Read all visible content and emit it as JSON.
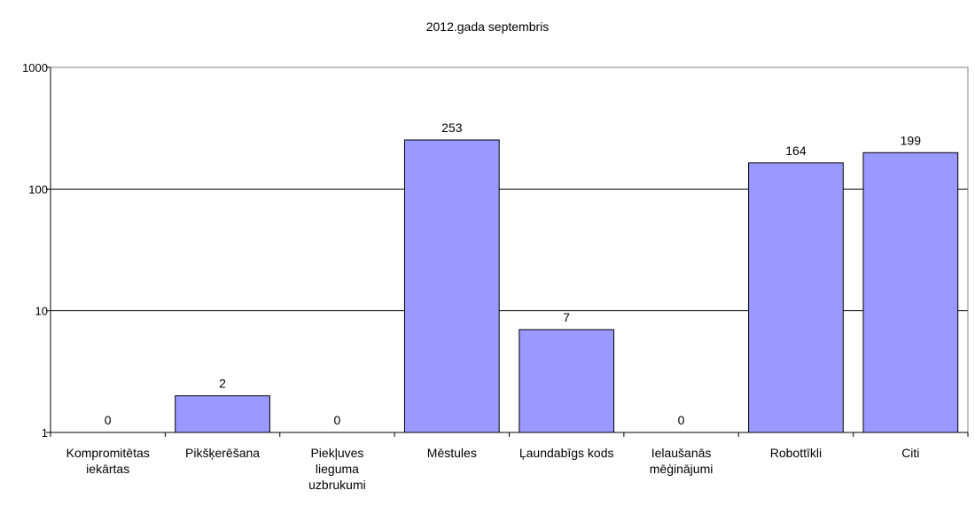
{
  "chart_data": {
    "type": "bar",
    "title": "2012.gada septembris",
    "xlabel": "",
    "ylabel": "",
    "yscale": "log",
    "ylim": [
      1,
      1000
    ],
    "yticks": [
      1,
      10,
      100,
      1000
    ],
    "ytick_labels": [
      "1",
      "10",
      "100",
      "1000"
    ],
    "grid": true,
    "legend": "none",
    "bar_color": "#9999ff",
    "categories": [
      [
        "Kompromitētas",
        "iekārtas"
      ],
      [
        "Pikšķerēšana"
      ],
      [
        "Piekļuves",
        "lieguma",
        "uzbrukumi"
      ],
      [
        "Mēstules"
      ],
      [
        "Ļaundabīgs kods"
      ],
      [
        "Ielaušanās",
        "mēģinājumi"
      ],
      [
        "Robottīkli"
      ],
      [
        "Citi"
      ]
    ],
    "values": [
      0,
      2,
      0,
      253,
      7,
      0,
      164,
      199
    ],
    "data_labels": [
      "0",
      "2",
      "0",
      "253",
      "7",
      "0",
      "164",
      "199"
    ]
  }
}
